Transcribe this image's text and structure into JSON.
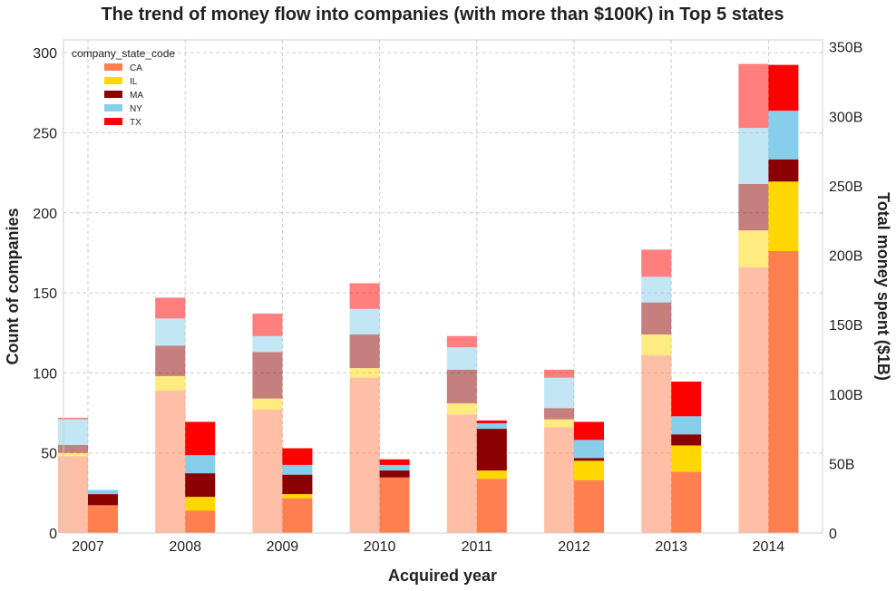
{
  "chart_data": {
    "type": "bar",
    "title": "The trend of money flow into companies (with more than $100K) in Top 5 states",
    "xlabel": "Acquired year",
    "ylabel": "Count of companies",
    "y2label": "Total money spent ($1B)",
    "categories": [
      "2007",
      "2008",
      "2009",
      "2010",
      "2011",
      "2012",
      "2013",
      "2014"
    ],
    "ylim": [
      0,
      308
    ],
    "y2lim": [
      0,
      355
    ],
    "yticks": [
      "0",
      "50",
      "100",
      "150",
      "200",
      "250",
      "300"
    ],
    "y2ticks": [
      "0",
      "50B",
      "100B",
      "150B",
      "200B",
      "250B",
      "300B",
      "350B"
    ],
    "grid": true,
    "legend": {
      "title": "company_state_code",
      "placement": "top-left"
    },
    "colors": {
      "CA": "#ff7f50",
      "IL": "#ffd700",
      "MA": "#8b0000",
      "NY": "#87ceeb",
      "TX": "#ff0000"
    },
    "count_series": [
      {
        "name": "CA",
        "values": [
          48,
          89,
          77,
          97,
          74,
          66,
          111,
          166
        ]
      },
      {
        "name": "IL",
        "values": [
          2,
          9,
          7,
          6,
          7,
          5,
          13,
          23
        ]
      },
      {
        "name": "MA",
        "values": [
          5,
          19,
          29,
          21,
          21,
          7,
          20,
          29
        ]
      },
      {
        "name": "NY",
        "values": [
          16,
          17,
          10,
          16,
          14,
          19,
          16,
          35
        ]
      },
      {
        "name": "TX",
        "values": [
          1,
          13,
          14,
          16,
          7,
          5,
          17,
          40
        ]
      }
    ],
    "money_series": [
      {
        "name": "CA",
        "values": [
          20,
          16,
          25,
          40,
          39,
          38,
          44,
          203
        ]
      },
      {
        "name": "IL",
        "values": [
          0,
          10,
          3,
          0,
          6,
          14,
          19,
          50
        ]
      },
      {
        "name": "MA",
        "values": [
          8,
          17,
          14,
          5,
          30,
          2,
          8,
          16
        ]
      },
      {
        "name": "NY",
        "values": [
          3,
          13,
          7,
          4,
          4,
          13,
          13,
          35
        ]
      },
      {
        "name": "TX",
        "values": [
          0,
          24,
          12,
          4,
          2,
          13,
          25,
          33
        ]
      }
    ]
  }
}
